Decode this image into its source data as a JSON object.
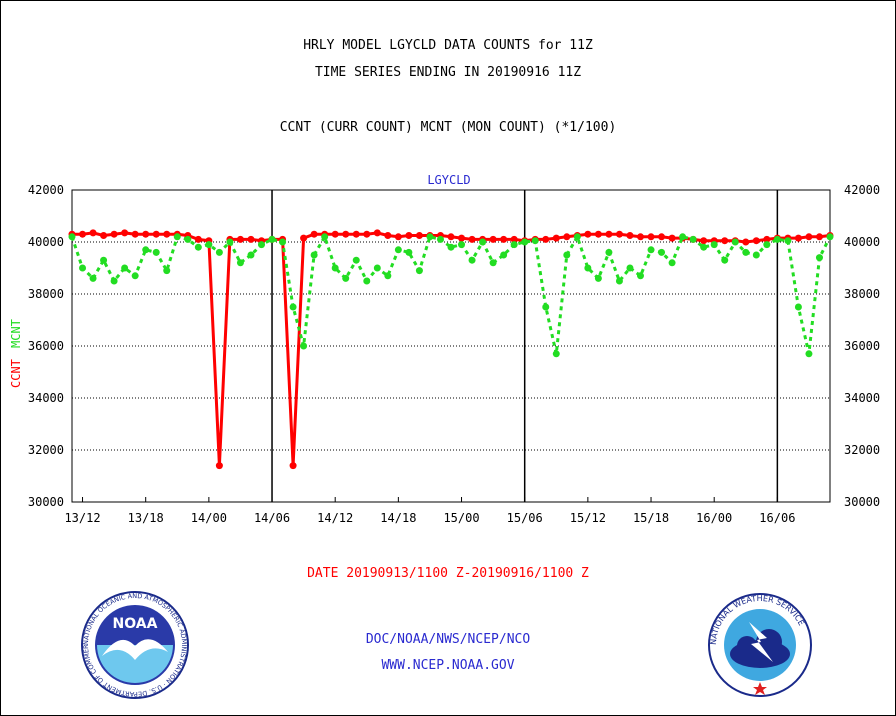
{
  "titles": {
    "line1": "HRLY MODEL LGYCLD DATA COUNTS for 11Z",
    "line2": "TIME SERIES ENDING IN 20190916 11Z",
    "line3": "CCNT (CURR COUNT) MCNT (MON COUNT) (*1/100)"
  },
  "date_range": "DATE 20190913/1100 Z-20190916/1100 Z",
  "footer": {
    "org": "DOC/NOAA/NWS/NCEP/NCO",
    "url": "WWW.NCEP.NOAA.GOV"
  },
  "logos": {
    "noaa_text": "NOAA",
    "noaa_ring": "NATIONAL OCEANIC AND ATMOSPHERIC ADMINISTRATION · U.S. DEPARTMENT OF COMMERCE",
    "nws_ring": "NATIONAL WEATHER SERVICE"
  },
  "chart_data": {
    "type": "line",
    "title": "LGYCLD",
    "ylabel_curr": "CCNT",
    "ylabel_mon": "MCNT",
    "ylim": [
      30000,
      42000
    ],
    "yticks": [
      30000,
      32000,
      34000,
      36000,
      38000,
      40000,
      42000
    ],
    "xlim": [
      0,
      72
    ],
    "xticks": [
      {
        "x": 1,
        "label": "13/12"
      },
      {
        "x": 7,
        "label": "13/18"
      },
      {
        "x": 13,
        "label": "14/00"
      },
      {
        "x": 19,
        "label": "14/06"
      },
      {
        "x": 25,
        "label": "14/12"
      },
      {
        "x": 31,
        "label": "14/18"
      },
      {
        "x": 37,
        "label": "15/00"
      },
      {
        "x": 43,
        "label": "15/06"
      },
      {
        "x": 49,
        "label": "15/12"
      },
      {
        "x": 55,
        "label": "15/18"
      },
      {
        "x": 61,
        "label": "16/00"
      },
      {
        "x": 67,
        "label": "16/06"
      }
    ],
    "day_boundaries": [
      19,
      43,
      67
    ],
    "grid": "horizontal dotted",
    "series": [
      {
        "name": "CCNT",
        "color": "#ff0000",
        "style": "solid",
        "values": [
          40300,
          40300,
          40350,
          40250,
          40300,
          40350,
          40300,
          40300,
          40300,
          40300,
          40300,
          40250,
          40100,
          40050,
          31400,
          40100,
          40100,
          40100,
          40050,
          40100,
          40100,
          31400,
          40150,
          40300,
          40300,
          40300,
          40300,
          40300,
          40300,
          40350,
          40250,
          40200,
          40250,
          40250,
          40250,
          40250,
          40200,
          40150,
          40100,
          40100,
          40100,
          40100,
          40100,
          40050,
          40100,
          40100,
          40150,
          40200,
          40250,
          40300,
          40300,
          40300,
          40300,
          40250,
          40200,
          40200,
          40200,
          40150,
          40150,
          40100,
          40050,
          40050,
          40050,
          40050,
          40000,
          40050,
          40100,
          40150,
          40150,
          40150,
          40200,
          40200,
          40250
        ]
      },
      {
        "name": "MCNT",
        "color": "#22dd22",
        "style": "dotted",
        "values": [
          40200,
          39000,
          38600,
          39300,
          38500,
          39000,
          38700,
          39700,
          39600,
          38900,
          40200,
          40100,
          39800,
          39900,
          39600,
          40000,
          39200,
          39500,
          39900,
          40100,
          40000,
          37500,
          36000,
          39500,
          40200,
          39000,
          38600,
          39300,
          38500,
          39000,
          38700,
          39700,
          39600,
          38900,
          40200,
          40100,
          39800,
          39900,
          39300,
          40000,
          39200,
          39500,
          39900,
          40000,
          40050,
          37500,
          35700,
          39500,
          40200,
          39000,
          38600,
          39600,
          38500,
          39000,
          38700,
          39700,
          39600,
          39200,
          40200,
          40100,
          39800,
          39900,
          39300,
          40000,
          39600,
          39500,
          39900,
          40100,
          40050,
          37500,
          35700,
          39400,
          40200
        ]
      }
    ]
  }
}
